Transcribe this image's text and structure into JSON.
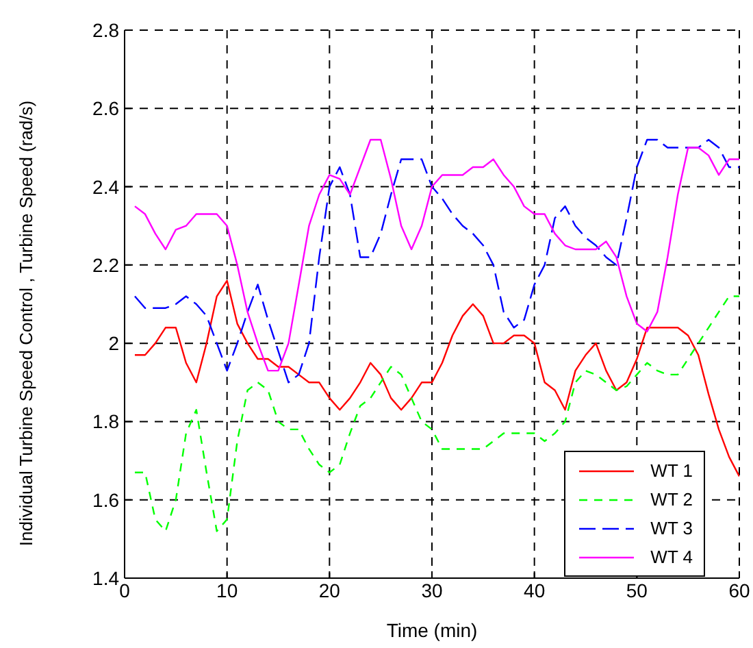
{
  "chart_data": {
    "type": "line",
    "xlabel": "Time (min)",
    "ylabel": "Individual Turbine Speed Control , Turbine Speed (rad/s)",
    "x": [
      1,
      2,
      3,
      4,
      5,
      6,
      7,
      8,
      9,
      10,
      11,
      12,
      13,
      14,
      15,
      16,
      17,
      18,
      19,
      20,
      21,
      22,
      23,
      24,
      25,
      26,
      27,
      28,
      29,
      30,
      31,
      32,
      33,
      34,
      35,
      36,
      37,
      38,
      39,
      40,
      41,
      42,
      43,
      44,
      45,
      46,
      47,
      48,
      49,
      50,
      51,
      52,
      53,
      54,
      55,
      56,
      57,
      58,
      59,
      60
    ],
    "series": [
      {
        "name": "WT 1",
        "color": "#ff0000",
        "line_style": "solid",
        "values": [
          1.97,
          1.97,
          2.0,
          2.04,
          2.04,
          1.95,
          1.9,
          2.0,
          2.12,
          2.16,
          2.05,
          2.0,
          1.96,
          1.96,
          1.94,
          1.94,
          1.92,
          1.9,
          1.9,
          1.86,
          1.83,
          1.86,
          1.9,
          1.95,
          1.92,
          1.86,
          1.83,
          1.86,
          1.9,
          1.9,
          1.95,
          2.02,
          2.07,
          2.1,
          2.07,
          2.0,
          2.0,
          2.02,
          2.02,
          2.0,
          1.9,
          1.88,
          1.83,
          1.93,
          1.97,
          2.0,
          1.93,
          1.88,
          1.9,
          1.96,
          2.04,
          2.04,
          2.04,
          2.04,
          2.02,
          1.97,
          1.87,
          1.78,
          1.71,
          1.66
        ]
      },
      {
        "name": "WT 2",
        "color": "#00ff00",
        "line_style": "dashed",
        "values": [
          1.67,
          1.67,
          1.55,
          1.52,
          1.6,
          1.77,
          1.83,
          1.67,
          1.52,
          1.55,
          1.75,
          1.88,
          1.9,
          1.88,
          1.8,
          1.78,
          1.78,
          1.73,
          1.69,
          1.67,
          1.69,
          1.77,
          1.84,
          1.86,
          1.9,
          1.94,
          1.92,
          1.86,
          1.8,
          1.78,
          1.73,
          1.73,
          1.73,
          1.73,
          1.73,
          1.75,
          1.77,
          1.77,
          1.77,
          1.77,
          1.75,
          1.77,
          1.8,
          1.9,
          1.93,
          1.92,
          1.9,
          1.88,
          1.89,
          1.92,
          1.95,
          1.93,
          1.92,
          1.92,
          1.96,
          2.0,
          2.04,
          2.08,
          2.12,
          2.12
        ]
      },
      {
        "name": "WT 3",
        "color": "#0000ff",
        "line_style": "dashed",
        "values": [
          2.12,
          2.09,
          2.09,
          2.09,
          2.1,
          2.12,
          2.1,
          2.07,
          2.0,
          1.93,
          2.0,
          2.08,
          2.15,
          2.06,
          1.98,
          1.9,
          1.92,
          2.0,
          2.22,
          2.4,
          2.45,
          2.38,
          2.22,
          2.22,
          2.28,
          2.38,
          2.47,
          2.47,
          2.47,
          2.4,
          2.37,
          2.33,
          2.3,
          2.28,
          2.25,
          2.2,
          2.08,
          2.04,
          2.06,
          2.15,
          2.2,
          2.32,
          2.35,
          2.3,
          2.27,
          2.25,
          2.22,
          2.2,
          2.32,
          2.45,
          2.52,
          2.52,
          2.5,
          2.5,
          2.5,
          2.5,
          2.52,
          2.5,
          2.45,
          2.45
        ]
      },
      {
        "name": "WT 4",
        "color": "#ff00ff",
        "line_style": "solid",
        "values": [
          2.35,
          2.33,
          2.28,
          2.24,
          2.29,
          2.3,
          2.33,
          2.33,
          2.33,
          2.3,
          2.2,
          2.08,
          2.0,
          1.93,
          1.93,
          2.0,
          2.15,
          2.3,
          2.38,
          2.43,
          2.42,
          2.38,
          2.45,
          2.52,
          2.52,
          2.42,
          2.3,
          2.24,
          2.3,
          2.4,
          2.43,
          2.43,
          2.43,
          2.45,
          2.45,
          2.47,
          2.43,
          2.4,
          2.35,
          2.33,
          2.33,
          2.28,
          2.25,
          2.24,
          2.24,
          2.24,
          2.26,
          2.22,
          2.12,
          2.05,
          2.03,
          2.08,
          2.22,
          2.38,
          2.5,
          2.5,
          2.48,
          2.43,
          2.47,
          2.47
        ]
      }
    ],
    "xlim": [
      0,
      60
    ],
    "xticks": [
      0,
      10,
      20,
      30,
      40,
      50,
      60
    ],
    "ylim": [
      1.4,
      2.8
    ],
    "yticks": [
      1.4,
      1.6,
      1.8,
      2,
      2.2,
      2.4,
      2.6,
      2.8
    ],
    "grid": true,
    "legend": "bottom right",
    "marker": "none"
  }
}
